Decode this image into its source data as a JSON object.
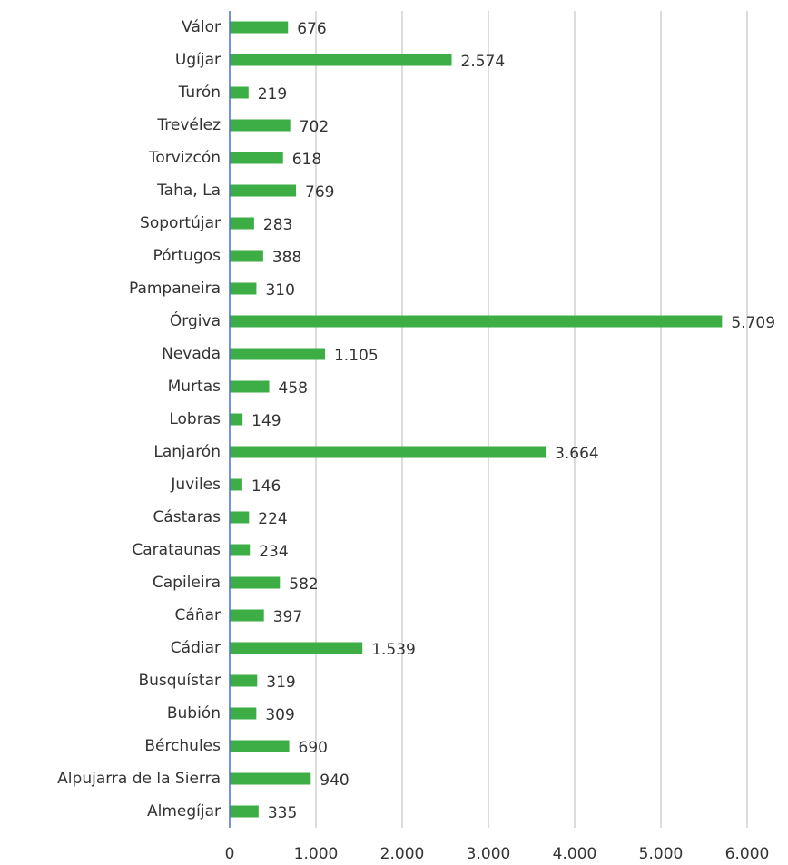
{
  "chart_data": {
    "type": "barh",
    "categories": [
      "Válor",
      "Ugíjar",
      "Turón",
      "Trevélez",
      "Torvizcón",
      "Taha, La",
      "Soportújar",
      "Pórtugos",
      "Pampaneira",
      "Órgiva",
      "Nevada",
      "Murtas",
      "Lobras",
      "Lanjarón",
      "Juviles",
      "Cástaras",
      "Carataunas",
      "Capileira",
      "Cáñar",
      "Cádiar",
      "Busquístar",
      "Bubión",
      "Bérchules",
      "Alpujarra de la Sierra",
      "Almegíjar"
    ],
    "values": [
      676,
      2574,
      219,
      702,
      618,
      769,
      283,
      388,
      310,
      5709,
      1105,
      458,
      149,
      3664,
      146,
      224,
      234,
      582,
      397,
      1539,
      319,
      309,
      690,
      940,
      335
    ],
    "value_labels": [
      "676",
      "2.574",
      "219",
      "702",
      "618",
      "769",
      "283",
      "388",
      "310",
      "5.709",
      "1.105",
      "458",
      "149",
      "3.664",
      "146",
      "224",
      "234",
      "582",
      "397",
      "1.539",
      "319",
      "309",
      "690",
      "940",
      "335"
    ],
    "color": "#3dae45",
    "xlim": [
      0,
      6000
    ],
    "xticks": [
      0,
      {
        "value": 1000,
        "label": "1.000"
      },
      {
        "value": 2000,
        "label": "2.000"
      },
      {
        "value": 3000,
        "label": "3.000"
      },
      {
        "value": 4000,
        "label": "4.000"
      },
      {
        "value": 5000,
        "label": "5.000"
      },
      {
        "value": 6000,
        "label": "6.000"
      }
    ],
    "grid": true
  }
}
